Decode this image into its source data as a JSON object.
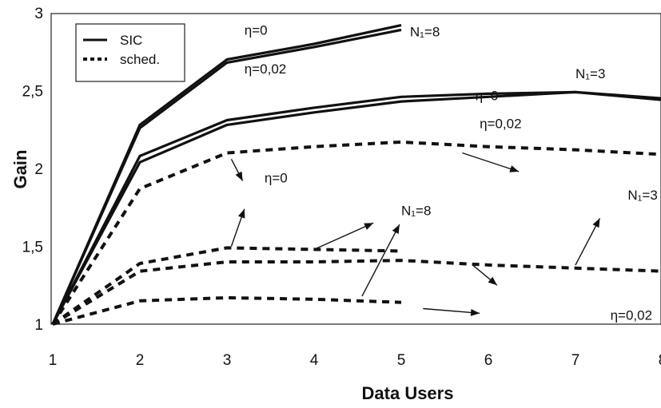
{
  "chart_data": {
    "type": "line",
    "xlabel": "Data Users",
    "ylabel": "Gain",
    "xlim": [
      1,
      8
    ],
    "ylim": [
      1,
      3
    ],
    "xticks": [
      "1",
      "2",
      "3",
      "4",
      "5",
      "6",
      "7",
      "8"
    ],
    "yticks": [
      "1",
      "1,5",
      "2",
      "2,5",
      "3"
    ],
    "legend": {
      "placement": "top-left",
      "entries": [
        {
          "label": "SIC",
          "style": "solid"
        },
        {
          "label": "sched.",
          "style": "dotted"
        }
      ]
    },
    "series": [
      {
        "style": "solid",
        "x": [
          1,
          2,
          3,
          4,
          5
        ],
        "values": [
          1.0,
          2.28,
          2.7,
          2.8,
          2.92
        ]
      },
      {
        "style": "solid",
        "x": [
          1,
          2,
          3,
          4,
          5
        ],
        "values": [
          1.0,
          2.26,
          2.68,
          2.78,
          2.89
        ]
      },
      {
        "style": "solid",
        "x": [
          1,
          2,
          3,
          4,
          5,
          6,
          7,
          8
        ],
        "values": [
          1.0,
          2.08,
          2.31,
          2.39,
          2.46,
          2.48,
          2.49,
          2.45
        ]
      },
      {
        "style": "solid",
        "x": [
          1,
          2,
          3,
          4,
          5,
          6,
          7,
          8
        ],
        "values": [
          1.0,
          2.04,
          2.28,
          2.36,
          2.43,
          2.46,
          2.49,
          2.44
        ]
      },
      {
        "style": "dotted",
        "x": [
          1,
          2,
          3,
          4,
          5,
          6,
          7,
          8
        ],
        "values": [
          1.0,
          1.87,
          2.1,
          2.14,
          2.17,
          2.14,
          2.12,
          2.09
        ]
      },
      {
        "style": "dotted",
        "x": [
          1,
          2,
          3,
          4,
          5
        ],
        "values": [
          1.0,
          1.39,
          1.49,
          1.48,
          1.47
        ]
      },
      {
        "style": "dotted",
        "x": [
          1,
          2,
          3,
          4,
          5,
          6,
          7,
          8
        ],
        "values": [
          1.0,
          1.34,
          1.4,
          1.4,
          1.41,
          1.38,
          1.36,
          1.34
        ]
      },
      {
        "style": "dotted",
        "x": [
          1,
          2,
          3,
          4,
          5
        ],
        "values": [
          1.0,
          1.15,
          1.17,
          1.16,
          1.14
        ]
      }
    ],
    "annotations": [
      {
        "text": "η=0",
        "x": 3.2,
        "y": 2.89
      },
      {
        "text": "η=0,02",
        "x": 3.2,
        "y": 2.64
      },
      {
        "text": "N₁=8",
        "x": 5.1,
        "y": 2.88
      },
      {
        "text": "N₁=3",
        "x": 7.0,
        "y": 2.61
      },
      {
        "text": "η=0",
        "x": 5.85,
        "y": 2.47
      },
      {
        "text": "η=0,02",
        "x": 5.9,
        "y": 2.29
      },
      {
        "text": "η=0",
        "x": 3.43,
        "y": 1.94
      },
      {
        "text": "N₁=8",
        "x": 5.0,
        "y": 1.73
      },
      {
        "text": "N₁=3",
        "x": 7.6,
        "y": 1.83
      },
      {
        "text": "η=0,02",
        "x": 7.4,
        "y": 1.06
      }
    ],
    "arrows": [
      {
        "from": [
          5.7,
          2.1
        ],
        "to": [
          6.35,
          1.98
        ]
      },
      {
        "from": [
          3.05,
          2.06
        ],
        "to": [
          3.18,
          1.92
        ]
      },
      {
        "from": [
          3.05,
          1.5
        ],
        "to": [
          3.2,
          1.74
        ]
      },
      {
        "from": [
          4.0,
          1.48
        ],
        "to": [
          4.68,
          1.65
        ]
      },
      {
        "from": [
          4.55,
          1.18
        ],
        "to": [
          4.98,
          1.64
        ]
      },
      {
        "from": [
          7.0,
          1.38
        ],
        "to": [
          7.28,
          1.68
        ]
      },
      {
        "from": [
          5.82,
          1.38
        ],
        "to": [
          6.1,
          1.25
        ]
      },
      {
        "from": [
          5.25,
          1.1
        ],
        "to": [
          5.9,
          1.07
        ]
      }
    ]
  }
}
